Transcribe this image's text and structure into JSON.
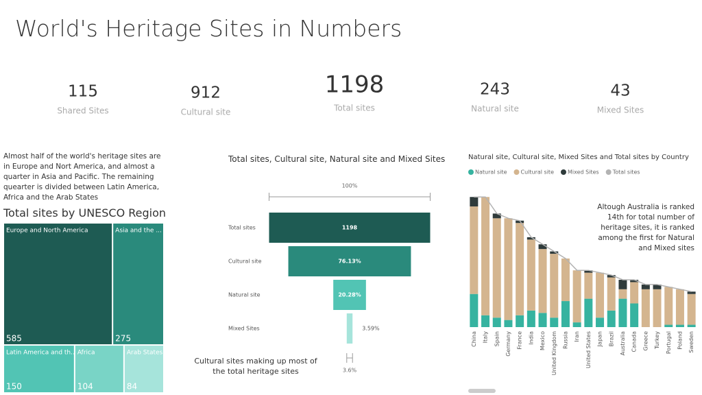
{
  "title": "World's Heritage Sites in Numbers",
  "kpis": [
    {
      "value": 115,
      "label": "Shared Sites"
    },
    {
      "value": 912,
      "label": "Cultural site"
    },
    {
      "value": 1198,
      "label": "Total sites"
    },
    {
      "value": 243,
      "label": "Natural site"
    },
    {
      "value": 43,
      "label": "Mixed Sites"
    }
  ],
  "intro_text": "Almost half of the world's heritage sites are in Europe and Nort America, and almost a quarter in Asia and Pacific. The remaining quearter is divided between Latin America, Africa and the Arab States",
  "chart_data": [
    {
      "type": "treemap",
      "title": "Total sites by UNESCO Region",
      "categories": [
        "Europe and North America",
        "Asia and the ...",
        "Latin America and th...",
        "Africa",
        "Arab States"
      ],
      "values": [
        585,
        275,
        150,
        104,
        84
      ],
      "colors": [
        "#1e5b53",
        "#2a8a7c",
        "#52c4b4",
        "#79d4c6",
        "#a6e4db"
      ]
    },
    {
      "type": "funnel",
      "title": "Total sites, Cultural site, Natural site and Mixed Sites",
      "categories": [
        "Total sites",
        "Cultural site",
        "Natural site",
        "Mixed Sites"
      ],
      "values": [
        1198,
        912,
        243,
        43
      ],
      "value_labels": [
        "1198",
        "76.13%",
        "20.28%",
        "3.59%"
      ],
      "colors": [
        "#1e5b53",
        "#2a8a7c",
        "#52c4b4",
        "#a6e4db"
      ],
      "top_label": "100%",
      "bottom_label": "3.6%",
      "annotation": "Cultural sites making up most of the total heritage sites"
    },
    {
      "type": "stacked_bar_line",
      "title": "Natural site, Cultural site, Mixed Sites and Total sites by Country",
      "categories": [
        "China",
        "Italy",
        "Spain",
        "Germany",
        "France",
        "India",
        "Mexico",
        "United Kingdom",
        "Russia",
        "Iran",
        "United States",
        "Japan",
        "Brazil",
        "Australia",
        "Canada",
        "Greece",
        "Turkey",
        "Portugal",
        "Poland",
        "Sweden"
      ],
      "series": [
        {
          "name": "Natural site",
          "color": "#36b3a0",
          "values": [
            14,
            5,
            4,
            3,
            5,
            7,
            6,
            4,
            11,
            2,
            12,
            4,
            7,
            12,
            10,
            0,
            0,
            1,
            1,
            1
          ]
        },
        {
          "name": "Cultural site",
          "color": "#d4b58f",
          "values": [
            37,
            50,
            42,
            43,
            39,
            30,
            27,
            27,
            18,
            22,
            11,
            19,
            14,
            4,
            9,
            16,
            16,
            16,
            15,
            13
          ]
        },
        {
          "name": "Mixed Sites",
          "color": "#2f3b3b",
          "values": [
            4,
            0,
            2,
            0,
            1,
            1,
            2,
            1,
            0,
            0,
            1,
            0,
            1,
            4,
            1,
            2,
            2,
            0,
            0,
            1
          ]
        },
        {
          "name": "Total sites",
          "color": "#b3b3b3",
          "type": "line",
          "values": [
            55,
            55,
            48,
            46,
            45,
            38,
            35,
            32,
            29,
            24,
            24,
            23,
            22,
            20,
            20,
            18,
            18,
            17,
            16,
            15
          ]
        }
      ],
      "ylim": [
        0,
        60
      ],
      "annotation": "Altough Australia is ranked 14th for total number of heritage sites, it is ranked among the first for Natural and Mixed sites"
    }
  ]
}
